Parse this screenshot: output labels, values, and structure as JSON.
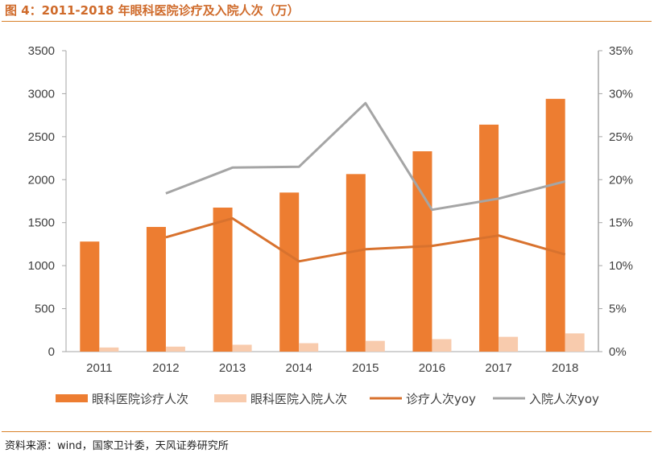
{
  "title": "图 4：2011-2018 年眼科医院诊疗及入院人次（万）",
  "source": "资料来源：wind，国家卫计委，天风证券研究所",
  "colors": {
    "bar_visits": "#ed7d31",
    "bar_admissions": "#f8cbad",
    "line_visits_yoy": "#d8722e",
    "line_admissions_yoy": "#a5a5a5",
    "accent": "#cf6a2a"
  },
  "chart_data": {
    "type": "bar",
    "categories": [
      "2011",
      "2012",
      "2013",
      "2014",
      "2015",
      "2016",
      "2017",
      "2018"
    ],
    "series": [
      {
        "name": "眼科医院诊疗人次",
        "type": "bar",
        "axis": "left",
        "values": [
          1280,
          1450,
          1675,
          1850,
          2065,
          2330,
          2640,
          2940
        ]
      },
      {
        "name": "眼科医院入院人次",
        "type": "bar",
        "axis": "left",
        "values": [
          48,
          58,
          80,
          98,
          125,
          145,
          172,
          212
        ]
      },
      {
        "name": "诊疗人次yoy",
        "type": "line",
        "axis": "right",
        "values": [
          null,
          13.3,
          15.5,
          10.5,
          11.9,
          12.3,
          13.5,
          11.3
        ]
      },
      {
        "name": "入院人次yoy",
        "type": "line",
        "axis": "right",
        "values": [
          null,
          18.4,
          21.4,
          21.5,
          28.9,
          16.5,
          17.8,
          19.8
        ]
      }
    ],
    "y_left": {
      "min": 0,
      "max": 3500,
      "ticks": [
        "0",
        "500",
        "1000",
        "1500",
        "2000",
        "2500",
        "3000",
        "3500"
      ]
    },
    "y_right": {
      "min": 0,
      "max": 35,
      "ticks": [
        "0%",
        "5%",
        "10%",
        "15%",
        "20%",
        "25%",
        "30%",
        "35%"
      ]
    },
    "grid": false,
    "legend_position": "bottom"
  }
}
